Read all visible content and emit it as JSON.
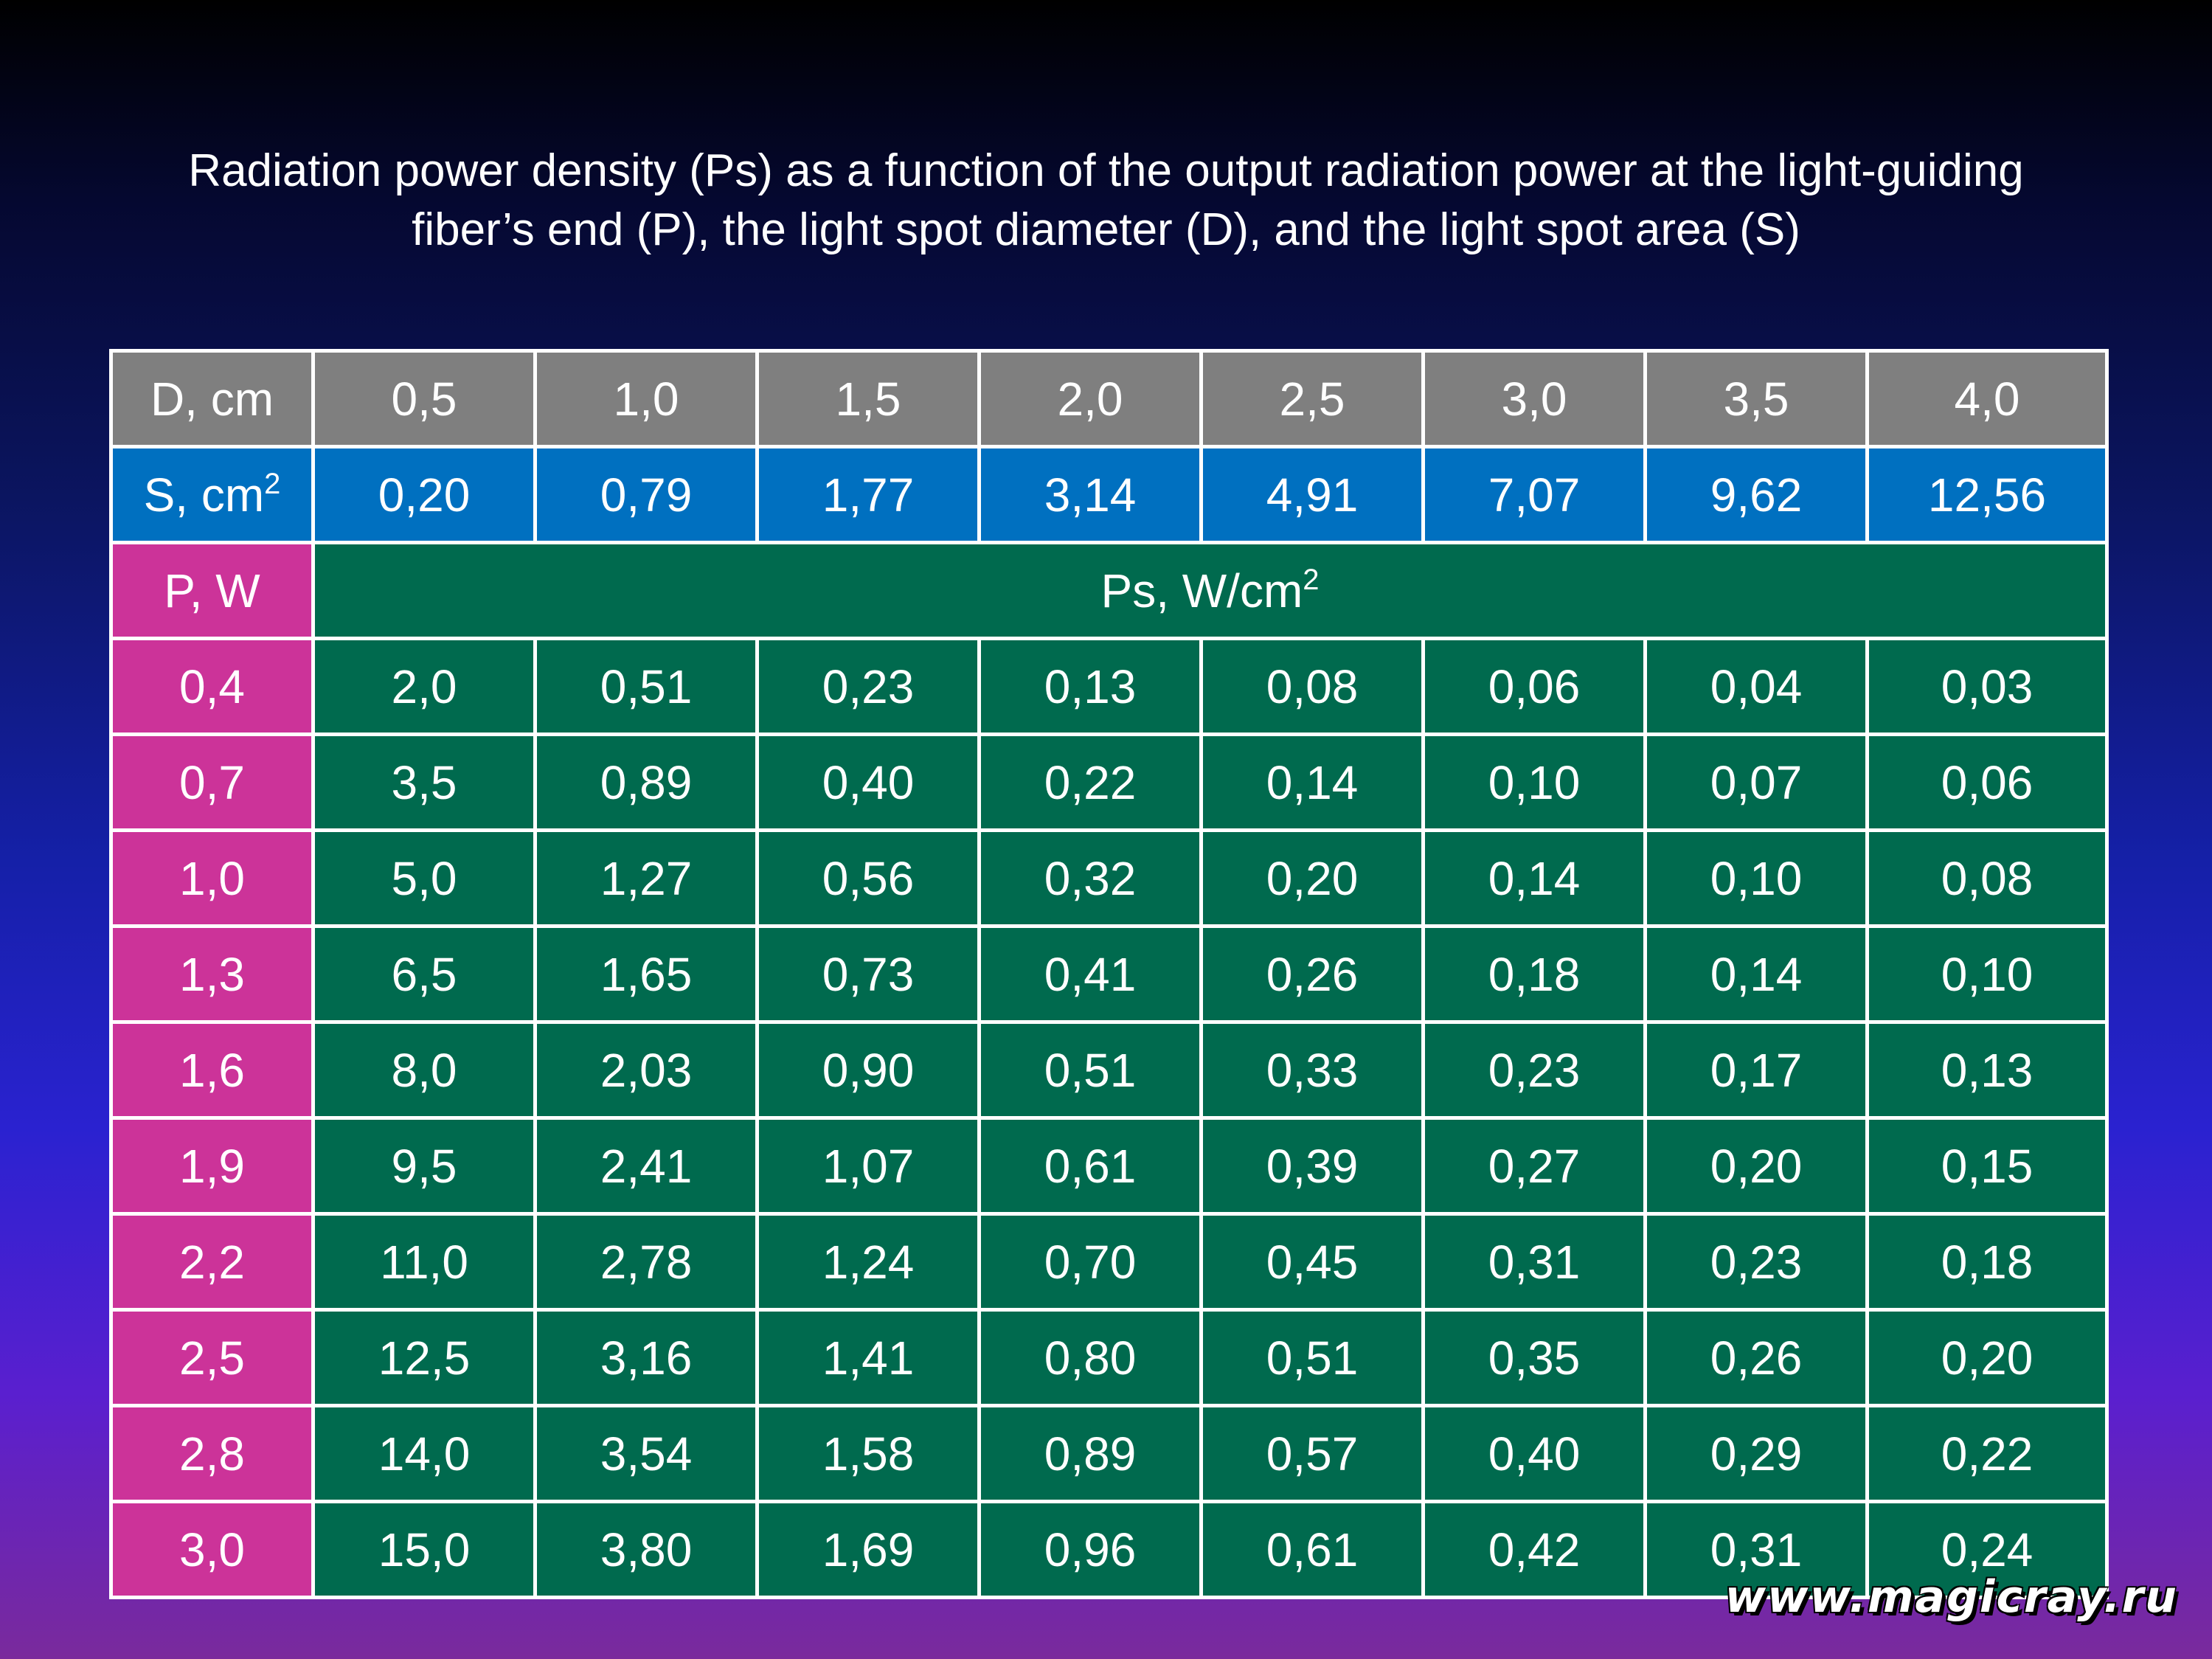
{
  "title": {
    "line1": "Radiation power density (Ps) as a function of the output radiation power at the light-guiding",
    "line2": "fiber’s end (P), the light spot diameter (D), and the light spot area (S)"
  },
  "table": {
    "d_label": "D, cm",
    "d_values": [
      "0,5",
      "1,0",
      "1,5",
      "2,0",
      "2,5",
      "3,0",
      "3,5",
      "4,0"
    ],
    "s_label": "S, cm",
    "s_label_sup": "2",
    "s_values": [
      "0,20",
      "0,79",
      "1,77",
      "3,14",
      "4,91",
      "7,07",
      "9,62",
      "12,56"
    ],
    "p_label": "P, W",
    "ps_label": "Ps, W/cm",
    "ps_label_sup": "2",
    "rows": [
      {
        "p": "0,4",
        "values": [
          "2,0",
          "0,51",
          "0,23",
          "0,13",
          "0,08",
          "0,06",
          "0,04",
          "0,03"
        ]
      },
      {
        "p": "0,7",
        "values": [
          "3,5",
          "0,89",
          "0,40",
          "0,22",
          "0,14",
          "0,10",
          "0,07",
          "0,06"
        ]
      },
      {
        "p": "1,0",
        "values": [
          "5,0",
          "1,27",
          "0,56",
          "0,32",
          "0,20",
          "0,14",
          "0,10",
          "0,08"
        ]
      },
      {
        "p": "1,3",
        "values": [
          "6,5",
          "1,65",
          "0,73",
          "0,41",
          "0,26",
          "0,18",
          "0,14",
          "0,10"
        ]
      },
      {
        "p": "1,6",
        "values": [
          "8,0",
          "2,03",
          "0,90",
          "0,51",
          "0,33",
          "0,23",
          "0,17",
          "0,13"
        ]
      },
      {
        "p": "1,9",
        "values": [
          "9,5",
          "2,41",
          "1,07",
          "0,61",
          "0,39",
          "0,27",
          "0,20",
          "0,15"
        ]
      },
      {
        "p": "2,2",
        "values": [
          "11,0",
          "2,78",
          "1,24",
          "0,70",
          "0,45",
          "0,31",
          "0,23",
          "0,18"
        ]
      },
      {
        "p": "2,5",
        "values": [
          "12,5",
          "3,16",
          "1,41",
          "0,80",
          "0,51",
          "0,35",
          "0,26",
          "0,20"
        ]
      },
      {
        "p": "2,8",
        "values": [
          "14,0",
          "3,54",
          "1,58",
          "0,89",
          "0,57",
          "0,40",
          "0,29",
          "0,22"
        ]
      },
      {
        "p": "3,0",
        "values": [
          "15,0",
          "3,80",
          "1,69",
          "0,96",
          "0,61",
          "0,42",
          "0,31",
          "0,24"
        ]
      }
    ]
  },
  "watermark": "www.magicray.ru",
  "colors": {
    "header_gray": "#7f7f7f",
    "header_blue": "#0070c0",
    "row_label_pink": "#cc3399",
    "data_green": "#006a4e",
    "border": "#ffffff",
    "text": "#ffffff"
  }
}
